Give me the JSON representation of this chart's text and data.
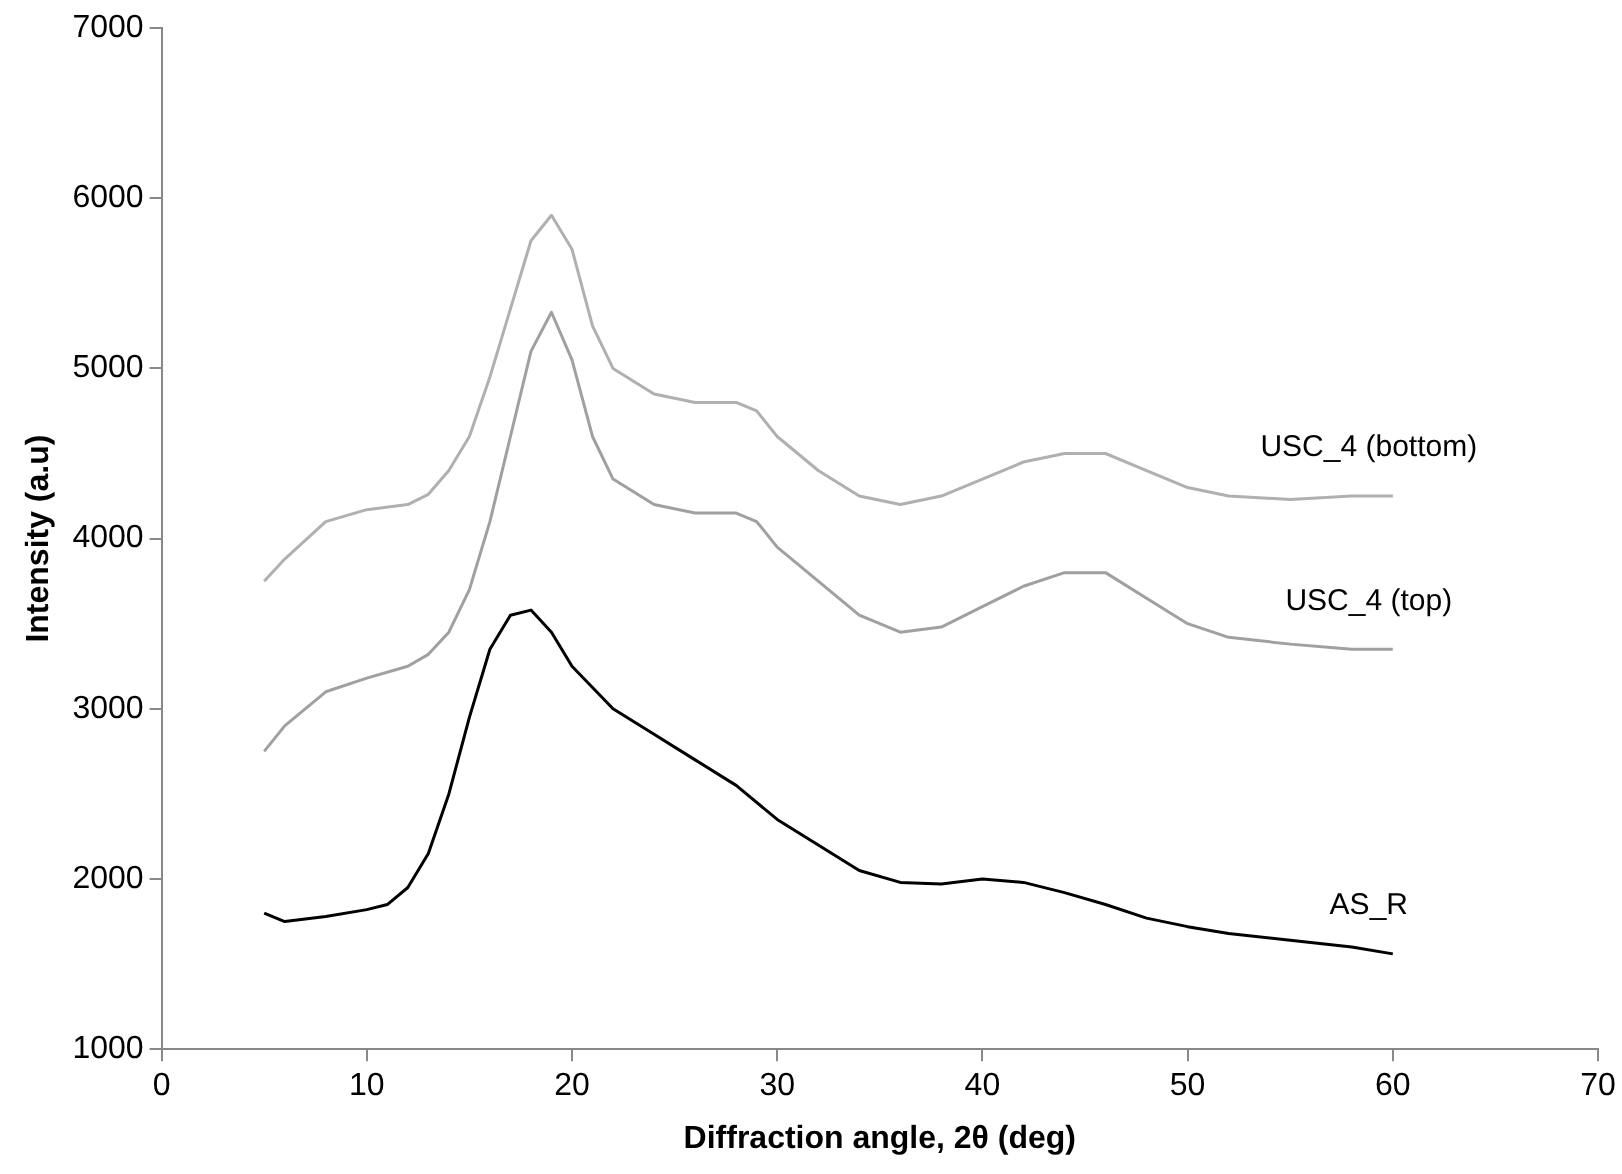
{
  "chart_data": {
    "type": "line",
    "xlabel": "Diffraction angle, 2θ (deg)",
    "ylabel": "Intensity (a.u)",
    "xlim": [
      0,
      70
    ],
    "xticks": [
      0,
      10,
      20,
      30,
      40,
      50,
      60,
      70
    ],
    "ylim": [
      1000,
      7000
    ],
    "yticks": [
      1000,
      2000,
      3000,
      4000,
      5000,
      6000,
      7000
    ],
    "grid": false,
    "legend": false,
    "marker": "none",
    "line_style": "solid",
    "series": [
      {
        "name": "USC_4 (bottom)",
        "color": "#b0b0b0",
        "x": [
          5,
          6,
          8,
          10,
          12,
          13,
          14,
          15,
          16,
          17,
          18,
          19,
          20,
          21,
          22,
          24,
          26,
          28,
          29,
          30,
          32,
          34,
          36,
          38,
          40,
          42,
          44,
          46,
          48,
          50,
          52,
          55,
          58,
          60
        ],
        "values": [
          3750,
          3880,
          4100,
          4170,
          4200,
          4260,
          4400,
          4600,
          4950,
          5350,
          5750,
          5900,
          5700,
          5250,
          5000,
          4850,
          4800,
          4800,
          4750,
          4600,
          4400,
          4250,
          4200,
          4250,
          4350,
          4450,
          4500,
          4500,
          4400,
          4300,
          4250,
          4230,
          4250,
          4250
        ]
      },
      {
        "name": "USC_4 (top)",
        "color": "#a0a0a0",
        "x": [
          5,
          6,
          8,
          10,
          12,
          13,
          14,
          15,
          16,
          17,
          18,
          19,
          20,
          21,
          22,
          24,
          26,
          28,
          29,
          30,
          32,
          34,
          36,
          38,
          40,
          42,
          44,
          46,
          48,
          50,
          52,
          55,
          58,
          60
        ],
        "values": [
          2750,
          2900,
          3100,
          3180,
          3250,
          3320,
          3450,
          3700,
          4100,
          4600,
          5100,
          5330,
          5050,
          4600,
          4350,
          4200,
          4150,
          4150,
          4100,
          3950,
          3750,
          3550,
          3450,
          3480,
          3600,
          3720,
          3800,
          3800,
          3650,
          3500,
          3420,
          3380,
          3350,
          3350
        ]
      },
      {
        "name": "AS_R",
        "color": "#000000",
        "x": [
          5,
          6,
          8,
          10,
          11,
          12,
          13,
          14,
          15,
          16,
          17,
          18,
          19,
          20,
          22,
          24,
          26,
          28,
          30,
          32,
          34,
          36,
          38,
          40,
          42,
          44,
          46,
          48,
          50,
          52,
          55,
          58,
          60
        ],
        "values": [
          1800,
          1750,
          1780,
          1820,
          1850,
          1950,
          2150,
          2500,
          2950,
          3350,
          3550,
          3580,
          3450,
          3250,
          3000,
          2850,
          2700,
          2550,
          2350,
          2200,
          2050,
          1980,
          1970,
          2000,
          1980,
          1920,
          1850,
          1770,
          1720,
          1680,
          1640,
          1600,
          1560
        ]
      }
    ]
  }
}
